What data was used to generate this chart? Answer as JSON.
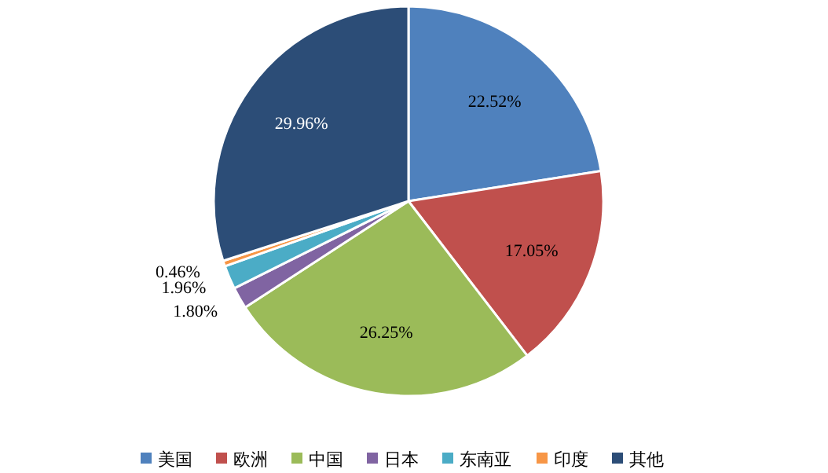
{
  "chart_data": {
    "type": "pie",
    "categories": [
      "美国",
      "欧洲",
      "中国",
      "日本",
      "东南亚",
      "印度",
      "其他"
    ],
    "values": [
      22.52,
      17.05,
      26.25,
      1.8,
      1.96,
      0.46,
      29.96
    ],
    "colors": [
      "#4f81bd",
      "#c0504d",
      "#9bbb59",
      "#8064a2",
      "#4bacc6",
      "#f79646",
      "#2c4d77"
    ],
    "value_labels": [
      "22.52%",
      "17.05%",
      "26.25%",
      "1.80%",
      "1.96%",
      "0.46%",
      "29.96%"
    ],
    "legend": "bottom"
  }
}
